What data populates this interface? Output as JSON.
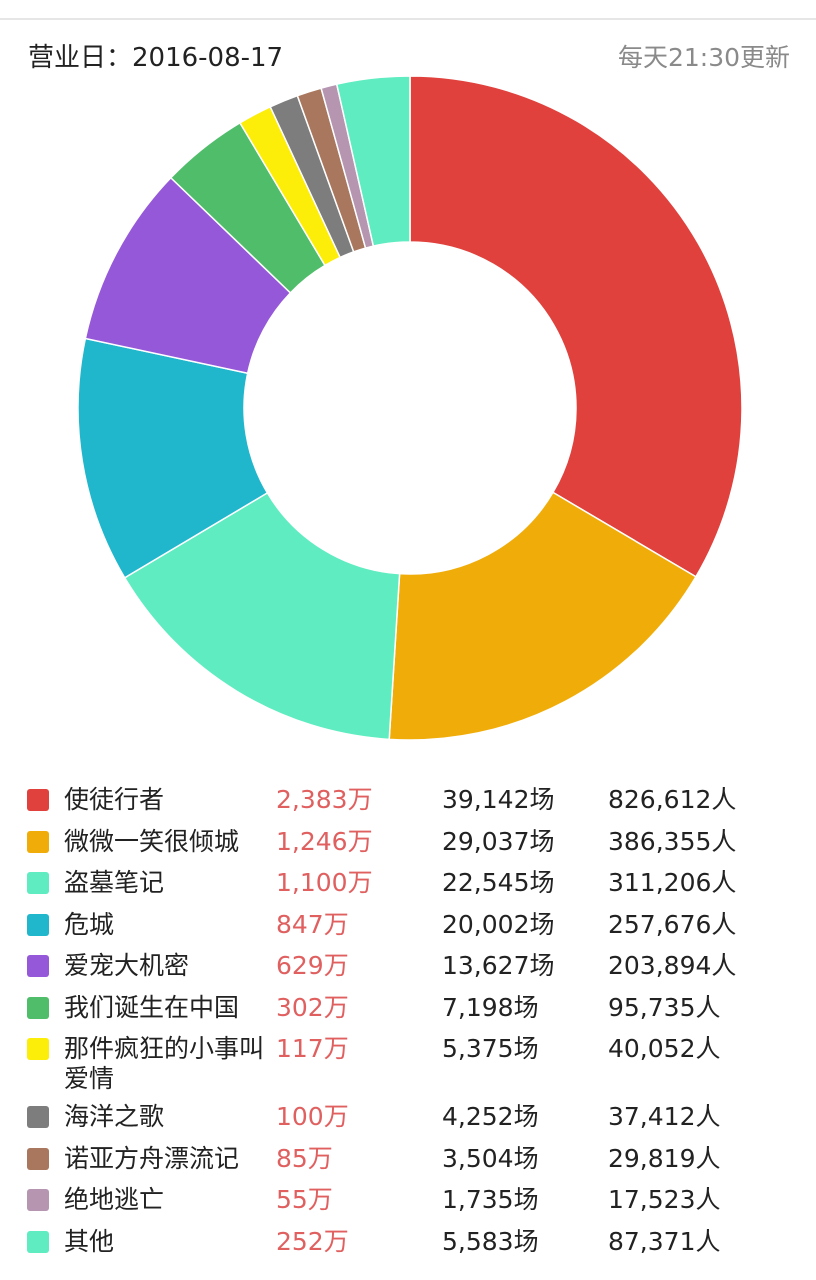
{
  "header": {
    "biz_date": "营业日：2016-08-17",
    "update_note": "每天21:30更新"
  },
  "chart_data": {
    "type": "pie",
    "style": "donut",
    "unit": "万",
    "legend_position": "bottom",
    "series": [
      {
        "name": "使徒行者",
        "value": 2383,
        "value_label": "2,383万",
        "shows": "39,142场",
        "viewers": "826,612人",
        "color": "#e0413c"
      },
      {
        "name": "微微一笑很倾城",
        "value": 1246,
        "value_label": "1,246万",
        "shows": "29,037场",
        "viewers": "386,355人",
        "color": "#f0ad0a"
      },
      {
        "name": "盗墓笔记",
        "value": 1100,
        "value_label": "1,100万",
        "shows": "22,545场",
        "viewers": "311,206人",
        "color": "#5eecc0"
      },
      {
        "name": "危城",
        "value": 847,
        "value_label": "847万",
        "shows": "20,002场",
        "viewers": "257,676人",
        "color": "#20b6cc"
      },
      {
        "name": "爱宠大机密",
        "value": 629,
        "value_label": "629万",
        "shows": "13,627场",
        "viewers": "203,894人",
        "color": "#9558d8"
      },
      {
        "name": "我们诞生在中国",
        "value": 302,
        "value_label": "302万",
        "shows": "7,198场",
        "viewers": "95,735人",
        "color": "#4fbd6a"
      },
      {
        "name": "那件疯狂的小事叫爱情",
        "value": 117,
        "value_label": "117万",
        "shows": "5,375场",
        "viewers": "40,052人",
        "color": "#fcee09"
      },
      {
        "name": "海洋之歌",
        "value": 100,
        "value_label": "100万",
        "shows": "4,252场",
        "viewers": "37,412人",
        "color": "#7d7d7d"
      },
      {
        "name": "诺亚方舟漂流记",
        "value": 85,
        "value_label": "85万",
        "shows": "3,504场",
        "viewers": "29,819人",
        "color": "#a8775e"
      },
      {
        "name": "绝地逃亡",
        "value": 55,
        "value_label": "55万",
        "shows": "1,735场",
        "viewers": "17,523人",
        "color": "#b595b0"
      },
      {
        "name": "其他",
        "value": 252,
        "value_label": "252万",
        "shows": "5,583场",
        "viewers": "87,371人",
        "color": "#5eecc0"
      }
    ]
  }
}
